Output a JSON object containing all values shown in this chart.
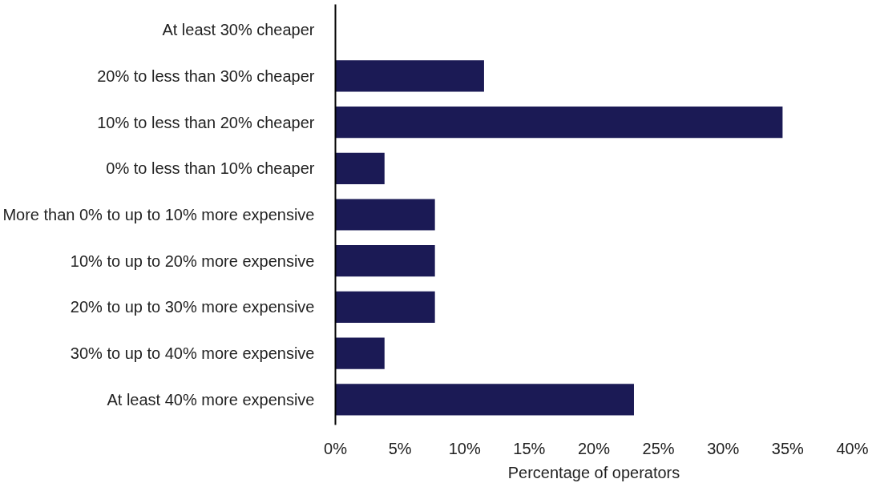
{
  "chart_data": {
    "type": "bar",
    "orientation": "horizontal",
    "xlabel": "Percentage of operators",
    "categories": [
      "At least 30% cheaper",
      "20% to less than 30% cheaper",
      "10% to less than 20% cheaper",
      "0% to less than 10% cheaper",
      "More than 0% to up to 10% more expensive",
      "10% to up to 20% more expensive",
      "20% to up to 30% more expensive",
      "30% to up to 40% more expensive",
      "At least 40% more expensive"
    ],
    "values": [
      0,
      11.5,
      34.6,
      3.8,
      7.7,
      7.7,
      7.7,
      3.8,
      23.1
    ],
    "color": "#1b1a55",
    "xlim": [
      0,
      40
    ],
    "xticks": [
      {
        "value": 0,
        "label": "0%"
      },
      {
        "value": 5,
        "label": "5%"
      },
      {
        "value": 10,
        "label": "10%"
      },
      {
        "value": 15,
        "label": "15%"
      },
      {
        "value": 20,
        "label": "20%"
      },
      {
        "value": 25,
        "label": "25%"
      },
      {
        "value": 30,
        "label": "30%"
      },
      {
        "value": 35,
        "label": "35%"
      },
      {
        "value": 40,
        "label": "40%"
      }
    ],
    "grid": false
  }
}
